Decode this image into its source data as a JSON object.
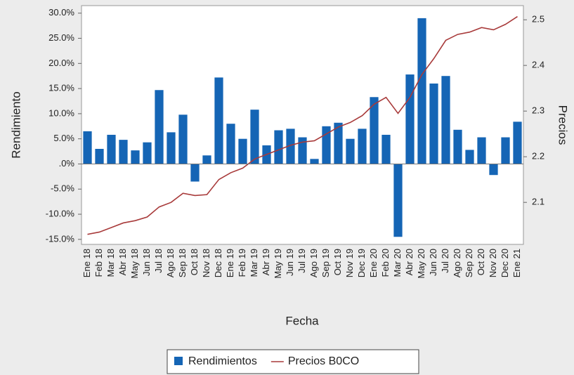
{
  "chart_data": {
    "type": "combo",
    "x_label": "Fecha",
    "y_label": "Rendimiento",
    "y2_label": "Precios",
    "categories": [
      "Ene 18",
      "Feb 18",
      "Mar 18",
      "Abr 18",
      "May 18",
      "Jun 18",
      "Jul 18",
      "Ago 18",
      "Sep 18",
      "Oct 18",
      "Nov 18",
      "Dec 18",
      "Ene 19",
      "Feb 19",
      "Mar 19",
      "Abr 19",
      "May 19",
      "Jun 19",
      "Jul 19",
      "Ago 19",
      "Sep 19",
      "Oct 19",
      "Nov 19",
      "Dec 19",
      "Ene 20",
      "Feb 20",
      "Mar 20",
      "Abr 20",
      "May 20",
      "Jun 20",
      "Jul 20",
      "Ago 20",
      "Sep 20",
      "Oct 20",
      "Nov 20",
      "Dec 20",
      "Ene 21"
    ],
    "series": [
      {
        "name": "Rendimientos",
        "type": "bar",
        "color": "#1565b5",
        "values": [
          6.5,
          3.0,
          5.8,
          4.8,
          2.7,
          4.3,
          14.7,
          6.3,
          9.8,
          -3.5,
          1.7,
          17.2,
          8.0,
          5.0,
          10.8,
          3.7,
          6.7,
          7.0,
          5.3,
          1.0,
          7.5,
          8.2,
          5.0,
          7.0,
          13.3,
          5.8,
          -14.5,
          17.8,
          29.0,
          16.0,
          17.5,
          6.8,
          2.8,
          5.3,
          -2.2,
          5.3,
          8.4
        ]
      },
      {
        "name": "Precios B0CO",
        "type": "line",
        "axis": "y2",
        "color": "#a83a3a",
        "values": [
          2.03,
          2.035,
          2.045,
          2.055,
          2.06,
          2.068,
          2.09,
          2.1,
          2.12,
          2.115,
          2.117,
          2.15,
          2.165,
          2.175,
          2.195,
          2.205,
          2.215,
          2.225,
          2.232,
          2.235,
          2.25,
          2.265,
          2.275,
          2.29,
          2.315,
          2.33,
          2.295,
          2.33,
          2.38,
          2.415,
          2.455,
          2.468,
          2.473,
          2.483,
          2.478,
          2.49,
          2.507
        ]
      }
    ],
    "ylim": [
      -16,
      31.5
    ],
    "yticks": [
      {
        "value": -15,
        "label": "-15.0%"
      },
      {
        "value": -10,
        "label": "-10.0%"
      },
      {
        "value": -5,
        "label": "-5.0%"
      },
      {
        "value": 0,
        "label": ".0%"
      },
      {
        "value": 5,
        "label": "5.0%"
      },
      {
        "value": 10,
        "label": "10.0%"
      },
      {
        "value": 15,
        "label": "15.0%"
      },
      {
        "value": 20,
        "label": "20.0%"
      },
      {
        "value": 25,
        "label": "25.0%"
      },
      {
        "value": 30,
        "label": "30.0%"
      }
    ],
    "y2lim": [
      2.008,
      2.531
    ],
    "y2ticks": [
      2.1,
      2.2,
      2.3,
      2.4,
      2.5
    ]
  }
}
